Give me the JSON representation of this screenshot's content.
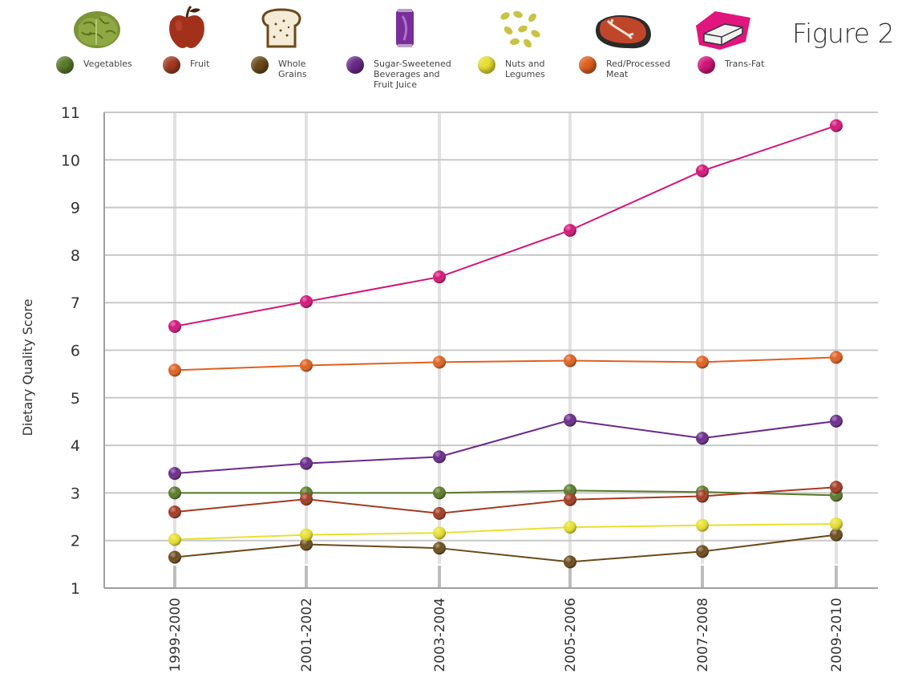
{
  "figure_label": "Figure 2",
  "legend": [
    {
      "name": "Vegetables",
      "lines": [
        "Vegetables"
      ],
      "icon": "lettuce-icon"
    },
    {
      "name": "Fruit",
      "lines": [
        "Fruit"
      ],
      "icon": "apple-icon"
    },
    {
      "name": "Whole Grains",
      "lines": [
        "Whole",
        "Grains"
      ],
      "icon": "bread-icon"
    },
    {
      "name": "Sugar-Sweetened Beverages and Fruit Juice",
      "lines": [
        "Sugar-Sweetened",
        "Beverages and",
        "Fruit Juice"
      ],
      "icon": "soda-can-icon"
    },
    {
      "name": "Nuts and Legumes",
      "lines": [
        "Nuts and",
        "Legumes"
      ],
      "icon": "beans-icon"
    },
    {
      "name": "Red/Processed Meat",
      "lines": [
        "Red/Processed",
        "Meat"
      ],
      "icon": "steak-icon"
    },
    {
      "name": "Trans-Fat",
      "lines": [
        "Trans-Fat"
      ],
      "icon": "butter-icon"
    }
  ],
  "chart_data": {
    "type": "line",
    "title": "",
    "xlabel": "",
    "ylabel": "Dietary Quality Score",
    "ylim": [
      1,
      11
    ],
    "yticks": [
      1,
      2,
      3,
      4,
      5,
      6,
      7,
      8,
      9,
      10,
      11
    ],
    "grid": true,
    "categories": [
      "1999-2000",
      "2001-2002",
      "2003-2004",
      "2005-2006",
      "2007-2008",
      "2009-2010"
    ],
    "series": [
      {
        "name": "Vegetables",
        "color": "#5a7a2a",
        "values": [
          3.0,
          3.0,
          3.0,
          3.05,
          3.02,
          2.95
        ]
      },
      {
        "name": "Fruit",
        "color": "#a33a22",
        "values": [
          2.6,
          2.87,
          2.57,
          2.86,
          2.93,
          3.12
        ]
      },
      {
        "name": "Whole Grains",
        "color": "#6b4a1a",
        "values": [
          1.65,
          1.92,
          1.84,
          1.55,
          1.77,
          2.12
        ]
      },
      {
        "name": "Sugar-Sweetened Beverages and Fruit Juice",
        "color": "#6a2a8a",
        "values": [
          3.41,
          3.62,
          3.76,
          4.53,
          4.15,
          4.51
        ]
      },
      {
        "name": "Nuts and Legumes",
        "color": "#e8e030",
        "values": [
          2.02,
          2.12,
          2.16,
          2.28,
          2.32,
          2.35
        ]
      },
      {
        "name": "Red/Processed Meat",
        "color": "#e06020",
        "values": [
          5.58,
          5.68,
          5.75,
          5.78,
          5.75,
          5.85
        ]
      },
      {
        "name": "Trans-Fat",
        "color": "#d4157a",
        "values": [
          6.5,
          7.02,
          7.54,
          8.52,
          9.77,
          10.72
        ]
      }
    ]
  }
}
